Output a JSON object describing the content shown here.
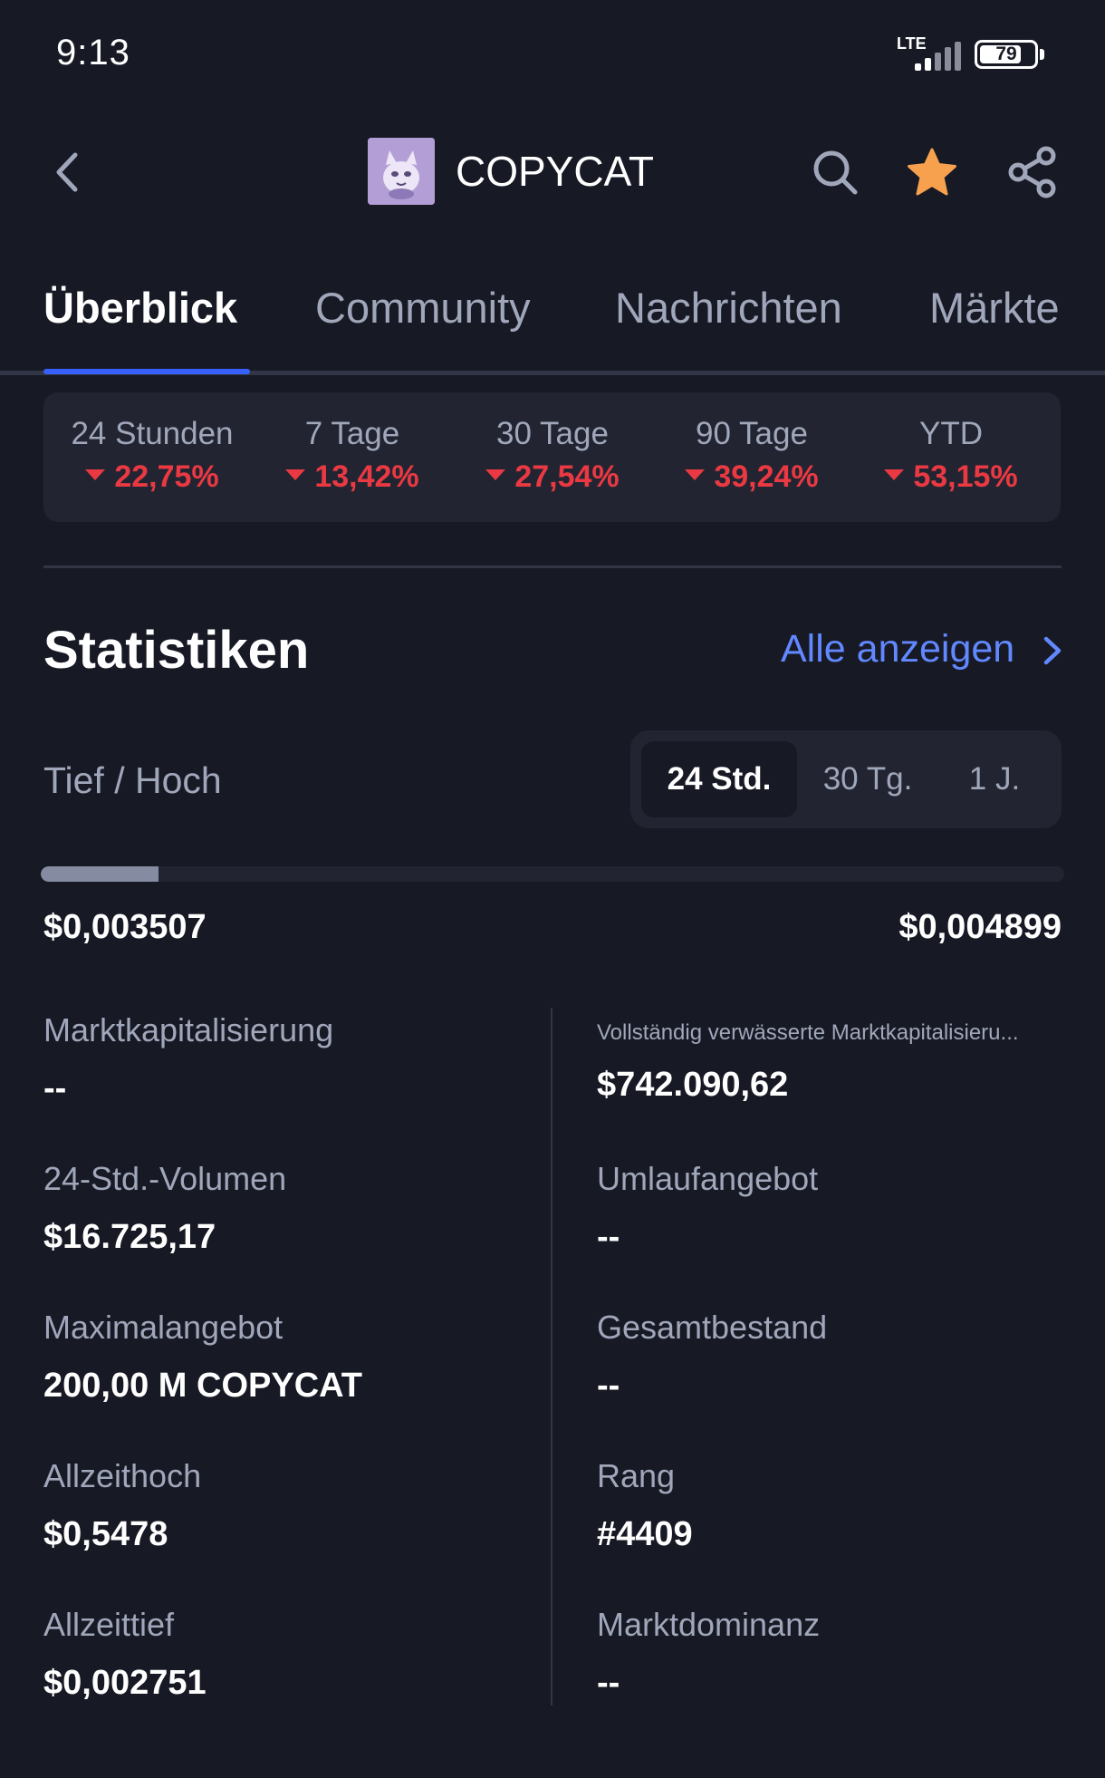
{
  "status_bar": {
    "time": "9:13",
    "network": "LTE",
    "battery": "79",
    "battery_level": 0.79
  },
  "header": {
    "coin_name": "COPYCAT",
    "icons": [
      "back-chevron-icon",
      "coin-logo",
      "search-icon",
      "star-icon",
      "share-icon"
    ],
    "star_color": "#f7a14e"
  },
  "tabs": [
    {
      "label": "Überblick",
      "active": true
    },
    {
      "label": "Community",
      "active": false
    },
    {
      "label": "Nachrichten",
      "active": false
    },
    {
      "label": "Märkte",
      "active": false
    }
  ],
  "performance": [
    {
      "label": "24 Stunden",
      "value": "22,75%",
      "direction": "down"
    },
    {
      "label": "7 Tage",
      "value": "13,42%",
      "direction": "down"
    },
    {
      "label": "30 Tage",
      "value": "27,54%",
      "direction": "down"
    },
    {
      "label": "90 Tage",
      "value": "39,24%",
      "direction": "down"
    },
    {
      "label": "YTD",
      "value": "53,15%",
      "direction": "down"
    }
  ],
  "statistics": {
    "title": "Statistiken",
    "see_all": "Alle anzeigen",
    "range_label": "Tief / Hoch",
    "range_options": [
      {
        "label": "24 Std.",
        "active": true
      },
      {
        "label": "30 Tg.",
        "active": false
      },
      {
        "label": "1 J.",
        "active": false
      }
    ],
    "low": "$0,003507",
    "high": "$0,004899",
    "range_position": 0.115,
    "left_column": [
      {
        "label": "Marktkapitalisierung",
        "value": "--"
      },
      {
        "label": "24-Std.-Volumen",
        "value": "$16.725,17"
      },
      {
        "label": "Maximalangebot",
        "value": "200,00 M COPYCAT"
      },
      {
        "label": "Allzeithoch",
        "value": "$0,5478"
      },
      {
        "label": "Allzeittief",
        "value": "$0,002751"
      }
    ],
    "right_column": [
      {
        "label": "Vollständig verwässerte Marktkapitalisieru...",
        "value": "$742.090,62"
      },
      {
        "label": "Umlaufangebot",
        "value": "--"
      },
      {
        "label": "Gesamtbestand",
        "value": "--"
      },
      {
        "label": "Rang",
        "value": "#4409"
      },
      {
        "label": "Marktdominanz",
        "value": "--"
      }
    ]
  },
  "colors": {
    "background": "#171924",
    "card": "#222531",
    "accent": "#3861fb",
    "link": "#6188ff",
    "negative": "#ea3943",
    "muted_text": "#a1a7bb"
  }
}
